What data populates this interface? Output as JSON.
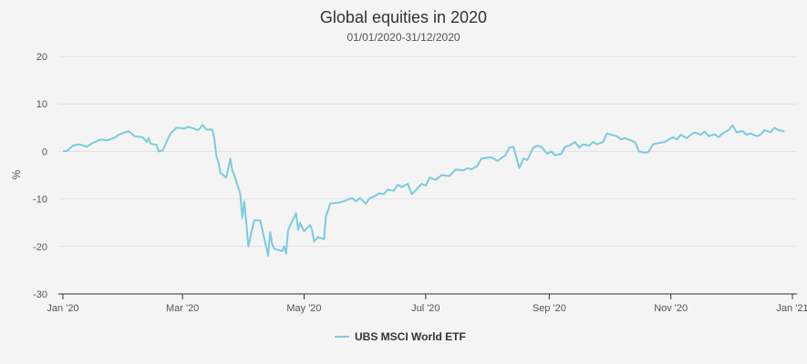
{
  "chart_data": {
    "type": "line",
    "title": "Global equities in 2020",
    "subtitle": "01/01/2020-31/12/2020",
    "xlabel": "",
    "ylabel": "%",
    "ylim": [
      -30,
      20
    ],
    "yticks": [
      -30,
      -20,
      -10,
      0,
      10,
      20
    ],
    "xlim": [
      "2020-01-01",
      "2021-01-01"
    ],
    "xticks": [
      {
        "date": "2020-01-01",
        "label": "Jan '20"
      },
      {
        "date": "2020-03-01",
        "label": "Mar '20"
      },
      {
        "date": "2020-05-01",
        "label": "May '20"
      },
      {
        "date": "2020-07-01",
        "label": "Jul '20"
      },
      {
        "date": "2020-09-01",
        "label": "Sep '20"
      },
      {
        "date": "2020-11-01",
        "label": "Nov '20"
      },
      {
        "date": "2021-01-01",
        "label": "Jan '21"
      }
    ],
    "grid": true,
    "legend_position": "bottom",
    "series": [
      {
        "name": "UBS MSCI World ETF",
        "color": "#7ccbdc",
        "points": [
          [
            "2020-01-01",
            0.0
          ],
          [
            "2020-01-03",
            0.1
          ],
          [
            "2020-01-06",
            1.2
          ],
          [
            "2020-01-09",
            1.5
          ],
          [
            "2020-01-13",
            1.0
          ],
          [
            "2020-01-16",
            1.8
          ],
          [
            "2020-01-20",
            2.5
          ],
          [
            "2020-01-23",
            2.3
          ],
          [
            "2020-01-27",
            2.9
          ],
          [
            "2020-01-29",
            3.5
          ],
          [
            "2020-02-03",
            4.3
          ],
          [
            "2020-02-06",
            3.2
          ],
          [
            "2020-02-10",
            3.0
          ],
          [
            "2020-02-12",
            2.0
          ],
          [
            "2020-02-13",
            2.8
          ],
          [
            "2020-02-14",
            1.6
          ],
          [
            "2020-02-17",
            1.4
          ],
          [
            "2020-02-18",
            0.0
          ],
          [
            "2020-02-20",
            0.2
          ],
          [
            "2020-02-24",
            3.8
          ],
          [
            "2020-02-27",
            5.0
          ],
          [
            "2020-03-02",
            4.8
          ],
          [
            "2020-03-04",
            5.2
          ],
          [
            "2020-03-06",
            4.9
          ],
          [
            "2020-03-09",
            4.5
          ],
          [
            "2020-03-11",
            5.6
          ],
          [
            "2020-03-13",
            4.6
          ],
          [
            "2020-03-16",
            4.6
          ],
          [
            "2020-03-17",
            2.6
          ],
          [
            "2020-03-18",
            -1.0
          ],
          [
            "2020-03-19",
            -2.2
          ],
          [
            "2020-03-20",
            -4.5
          ],
          [
            "2020-03-23",
            -5.5
          ],
          [
            "2020-03-24",
            -3.5
          ],
          [
            "2020-03-25",
            -1.5
          ],
          [
            "2020-03-26",
            -4.0
          ],
          [
            "2020-03-27",
            -5.0
          ],
          [
            "2020-03-30",
            -9.0
          ],
          [
            "2020-03-31",
            -14.0
          ],
          [
            "2020-04-01",
            -10.5
          ],
          [
            "2020-04-02",
            -15.0
          ],
          [
            "2020-04-03",
            -20.0
          ],
          [
            "2020-04-06",
            -14.5
          ],
          [
            "2020-04-09",
            -14.5
          ],
          [
            "2020-04-13",
            -22.0
          ],
          [
            "2020-04-14",
            -17.0
          ],
          [
            "2020-04-15",
            -19.5
          ],
          [
            "2020-04-16",
            -20.5
          ],
          [
            "2020-04-20",
            -21.0
          ],
          [
            "2020-04-21",
            -20.0
          ],
          [
            "2020-04-22",
            -21.5
          ],
          [
            "2020-04-23",
            -16.5
          ],
          [
            "2020-04-27",
            -13.0
          ],
          [
            "2020-04-28",
            -16.5
          ],
          [
            "2020-04-29",
            -15.0
          ],
          [
            "2020-05-01",
            -16.8
          ],
          [
            "2020-05-04",
            -15.5
          ],
          [
            "2020-05-05",
            -16.5
          ],
          [
            "2020-05-06",
            -19.0
          ],
          [
            "2020-05-07",
            -18.5
          ],
          [
            "2020-05-08",
            -18.0
          ],
          [
            "2020-05-11",
            -18.5
          ],
          [
            "2020-05-12",
            -13.5
          ],
          [
            "2020-05-13",
            -12.5
          ],
          [
            "2020-05-14",
            -11.0
          ],
          [
            "2020-05-18",
            -10.8
          ],
          [
            "2020-05-21",
            -10.5
          ],
          [
            "2020-05-25",
            -9.8
          ],
          [
            "2020-05-27",
            -10.5
          ],
          [
            "2020-05-29",
            -9.8
          ],
          [
            "2020-06-01",
            -11.0
          ],
          [
            "2020-06-03",
            -9.8
          ],
          [
            "2020-06-05",
            -9.5
          ],
          [
            "2020-06-08",
            -8.8
          ],
          [
            "2020-06-10",
            -9.0
          ],
          [
            "2020-06-12",
            -8.0
          ],
          [
            "2020-06-15",
            -8.3
          ],
          [
            "2020-06-17",
            -7.0
          ],
          [
            "2020-06-19",
            -7.5
          ],
          [
            "2020-06-22",
            -6.8
          ],
          [
            "2020-06-24",
            -9.0
          ],
          [
            "2020-06-26",
            -8.2
          ],
          [
            "2020-06-29",
            -6.8
          ],
          [
            "2020-07-01",
            -7.2
          ],
          [
            "2020-07-03",
            -5.5
          ],
          [
            "2020-07-06",
            -6.0
          ],
          [
            "2020-07-09",
            -5.0
          ],
          [
            "2020-07-13",
            -5.2
          ],
          [
            "2020-07-16",
            -3.8
          ],
          [
            "2020-07-20",
            -4.0
          ],
          [
            "2020-07-22",
            -3.5
          ],
          [
            "2020-07-24",
            -3.8
          ],
          [
            "2020-07-27",
            -3.0
          ],
          [
            "2020-07-29",
            -1.5
          ],
          [
            "2020-08-03",
            -1.2
          ],
          [
            "2020-08-06",
            -2.0
          ],
          [
            "2020-08-10",
            -0.8
          ],
          [
            "2020-08-12",
            0.8
          ],
          [
            "2020-08-14",
            1.0
          ],
          [
            "2020-08-17",
            -3.5
          ],
          [
            "2020-08-19",
            -1.5
          ],
          [
            "2020-08-21",
            -1.8
          ],
          [
            "2020-08-24",
            0.8
          ],
          [
            "2020-08-26",
            1.2
          ],
          [
            "2020-08-28",
            1.0
          ],
          [
            "2020-08-31",
            -0.5
          ],
          [
            "2020-09-02",
            0.0
          ],
          [
            "2020-09-04",
            -0.8
          ],
          [
            "2020-09-07",
            -0.5
          ],
          [
            "2020-09-09",
            1.0
          ],
          [
            "2020-09-11",
            1.2
          ],
          [
            "2020-09-14",
            2.0
          ],
          [
            "2020-09-16",
            0.8
          ],
          [
            "2020-09-18",
            1.5
          ],
          [
            "2020-09-21",
            1.2
          ],
          [
            "2020-09-23",
            2.0
          ],
          [
            "2020-09-25",
            1.5
          ],
          [
            "2020-09-28",
            2.0
          ],
          [
            "2020-09-30",
            3.8
          ],
          [
            "2020-10-02",
            3.5
          ],
          [
            "2020-10-05",
            3.2
          ],
          [
            "2020-10-07",
            2.5
          ],
          [
            "2020-10-09",
            2.8
          ],
          [
            "2020-10-12",
            2.3
          ],
          [
            "2020-10-14",
            2.0
          ],
          [
            "2020-10-16",
            0.0
          ],
          [
            "2020-10-19",
            -0.3
          ],
          [
            "2020-10-21",
            0.0
          ],
          [
            "2020-10-23",
            1.5
          ],
          [
            "2020-10-26",
            1.8
          ],
          [
            "2020-10-29",
            2.0
          ],
          [
            "2020-11-02",
            3.0
          ],
          [
            "2020-11-04",
            2.5
          ],
          [
            "2020-11-06",
            3.5
          ],
          [
            "2020-11-09",
            2.8
          ],
          [
            "2020-11-11",
            3.5
          ],
          [
            "2020-11-13",
            4.0
          ],
          [
            "2020-11-16",
            3.5
          ],
          [
            "2020-11-18",
            4.2
          ],
          [
            "2020-11-20",
            3.2
          ],
          [
            "2020-11-23",
            3.6
          ],
          [
            "2020-11-25",
            3.0
          ],
          [
            "2020-11-27",
            3.8
          ],
          [
            "2020-11-30",
            4.5
          ],
          [
            "2020-12-02",
            5.5
          ],
          [
            "2020-12-04",
            4.0
          ],
          [
            "2020-12-07",
            4.3
          ],
          [
            "2020-12-09",
            3.5
          ],
          [
            "2020-12-11",
            3.8
          ],
          [
            "2020-12-14",
            3.2
          ],
          [
            "2020-12-16",
            3.5
          ],
          [
            "2020-12-18",
            4.5
          ],
          [
            "2020-12-21",
            4.0
          ],
          [
            "2020-12-23",
            5.0
          ],
          [
            "2020-12-25",
            4.5
          ],
          [
            "2020-12-28",
            4.2
          ]
        ]
      }
    ]
  },
  "legend": {
    "label": "UBS MSCI World ETF"
  }
}
